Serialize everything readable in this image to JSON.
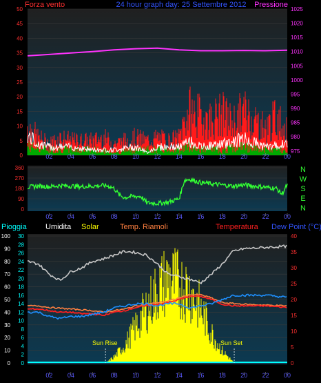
{
  "header": {
    "left_label": "Forza vento",
    "center_label": "24 hour graph day: 25 Settembre 2012",
    "right_label": "Pressione"
  },
  "colors": {
    "wind_gust": "#ff1a1a",
    "wind_avg": "#00aa00",
    "wind_line": "#ffffff",
    "pressure": "#ff33ff",
    "direction": "#33ff33",
    "humidity": "#c8c8c8",
    "temperature": "#ff2020",
    "dew_point": "#1e90ff",
    "solar": "#ffff00",
    "heat_index": "#ff8040",
    "rain": "#00ffff",
    "axis_red": "#ff3030",
    "axis_magenta": "#ff33ff",
    "axis_cyan": "#00ffff",
    "axis_blue": "#3355ff",
    "axis_white": "#ffffff",
    "axis_green": "#33ff33",
    "time_label": "#5a5aff"
  },
  "time_axis": [
    "02",
    "04",
    "06",
    "08",
    "10",
    "12",
    "14",
    "16",
    "18",
    "20",
    "22",
    "00"
  ],
  "compass": [
    "N",
    "W",
    "S",
    "E",
    "N"
  ],
  "legend2": {
    "pioggia": "Pioggia",
    "umidita": "Umidita",
    "solar": "Solar",
    "temp_riamoli": "Temp. Riamoli",
    "temperatura": "Temperatura",
    "dew_point": "Dew Point (°C)"
  },
  "sun": {
    "rise": "Sun Rise",
    "set": "Sun Set"
  },
  "chart_data": [
    {
      "type": "line",
      "id": "wind_pressure",
      "x_hours": [
        0,
        24
      ],
      "y_left_ticks": [
        0,
        5,
        10,
        15,
        20,
        25,
        30,
        35,
        40,
        45,
        50
      ],
      "y_left_range": [
        0,
        50
      ],
      "y_right_ticks": [
        975,
        980,
        985,
        990,
        995,
        1000,
        1005,
        1010,
        1015,
        1020,
        1025
      ],
      "y_right_range": [
        973.5,
        1025
      ],
      "series": [
        {
          "key": "pressure",
          "points": [
            [
              0,
              1008.5
            ],
            [
              2,
              1009
            ],
            [
              4,
              1009.5
            ],
            [
              6,
              1010
            ],
            [
              8,
              1010.6
            ],
            [
              10,
              1011
            ],
            [
              12,
              1011.2
            ],
            [
              14,
              1010.6
            ],
            [
              16,
              1010.3
            ],
            [
              18,
              1010.3
            ],
            [
              20,
              1010.4
            ],
            [
              22,
              1010.3
            ],
            [
              24,
              1010.5
            ]
          ]
        },
        {
          "key": "gust",
          "points": [
            [
              0,
              10
            ],
            [
              1,
              6
            ],
            [
              2,
              4
            ],
            [
              3,
              6
            ],
            [
              4,
              5
            ],
            [
              5,
              5
            ],
            [
              6,
              5
            ],
            [
              7,
              6
            ],
            [
              8,
              4
            ],
            [
              9,
              5
            ],
            [
              10,
              6
            ],
            [
              11,
              5
            ],
            [
              12,
              6
            ],
            [
              13,
              5
            ],
            [
              14,
              6
            ],
            [
              14.5,
              12
            ],
            [
              15,
              15
            ],
            [
              16,
              13
            ],
            [
              17,
              12
            ],
            [
              18,
              14
            ],
            [
              19,
              11
            ],
            [
              20,
              15
            ],
            [
              21,
              12
            ],
            [
              22,
              9
            ],
            [
              23,
              13
            ],
            [
              24,
              8
            ]
          ]
        },
        {
          "key": "avg",
          "points": [
            [
              0,
              3
            ],
            [
              2,
              2
            ],
            [
              4,
              2
            ],
            [
              6,
              2
            ],
            [
              8,
              1
            ],
            [
              10,
              2
            ],
            [
              12,
              2
            ],
            [
              14,
              2
            ],
            [
              15,
              3
            ],
            [
              16,
              2
            ],
            [
              18,
              2
            ],
            [
              20,
              3
            ],
            [
              22,
              2
            ],
            [
              24,
              2
            ]
          ]
        },
        {
          "key": "speed",
          "points": [
            [
              0,
              7
            ],
            [
              1,
              4
            ],
            [
              2,
              3
            ],
            [
              4,
              3
            ],
            [
              6,
              2
            ],
            [
              8,
              2
            ],
            [
              10,
              3
            ],
            [
              11,
              1
            ],
            [
              12,
              3
            ],
            [
              14,
              3
            ],
            [
              15,
              5
            ],
            [
              16,
              3
            ],
            [
              18,
              4
            ],
            [
              20,
              6
            ],
            [
              22,
              3
            ],
            [
              24,
              4
            ]
          ]
        }
      ]
    },
    {
      "type": "scatter",
      "id": "wind_direction",
      "y_ticks": [
        0,
        90,
        180,
        270,
        360
      ],
      "y_range": [
        0,
        360
      ],
      "points": [
        [
          0,
          190
        ],
        [
          1,
          200
        ],
        [
          2,
          195
        ],
        [
          3,
          205
        ],
        [
          4,
          200
        ],
        [
          5,
          195
        ],
        [
          6,
          200
        ],
        [
          7,
          205
        ],
        [
          7.5,
          200
        ],
        [
          8,
          180
        ],
        [
          8.5,
          120
        ],
        [
          9,
          100
        ],
        [
          9.5,
          110
        ],
        [
          10,
          110
        ],
        [
          10.5,
          110
        ],
        [
          11,
          55
        ],
        [
          12,
          50
        ],
        [
          13,
          60
        ],
        [
          14,
          90
        ],
        [
          14.5,
          250
        ],
        [
          15,
          260
        ],
        [
          16,
          230
        ],
        [
          17,
          220
        ],
        [
          18,
          210
        ],
        [
          19,
          200
        ],
        [
          20,
          210
        ],
        [
          21,
          200
        ],
        [
          22,
          190
        ],
        [
          23,
          180
        ],
        [
          23.5,
          130
        ],
        [
          24,
          210
        ]
      ]
    },
    {
      "type": "line",
      "id": "temp_hum_solar",
      "y_hum_ticks": [
        0,
        10,
        20,
        30,
        40,
        50,
        60,
        70,
        80,
        90,
        100
      ],
      "y_hum_range": [
        0,
        100
      ],
      "y_dew_ticks": [
        0,
        2,
        4,
        6,
        8,
        10,
        12,
        14,
        16,
        18,
        20,
        22,
        24,
        26,
        28,
        30
      ],
      "y_dew_range": [
        0,
        30
      ],
      "y_temp_ticks": [
        0,
        5,
        10,
        15,
        20,
        25,
        30,
        35,
        40
      ],
      "y_temp_range": [
        0,
        40
      ],
      "sun_rise_hour": 7.2,
      "sun_set_hour": 19.1,
      "series": [
        {
          "key": "humidity",
          "points": [
            [
              0,
              80
            ],
            [
              1,
              78
            ],
            [
              2,
              70
            ],
            [
              3,
              65
            ],
            [
              4,
              72
            ],
            [
              5,
              75
            ],
            [
              6,
              80
            ],
            [
              7,
              82
            ],
            [
              8,
              85
            ],
            [
              9,
              88
            ],
            [
              10,
              87
            ],
            [
              11,
              85
            ],
            [
              12,
              78
            ],
            [
              13,
              70
            ],
            [
              14,
              68
            ],
            [
              15,
              66
            ],
            [
              16,
              63
            ],
            [
              17,
              70
            ],
            [
              18,
              78
            ],
            [
              19,
              88
            ],
            [
              20,
              90
            ],
            [
              22,
              91
            ],
            [
              24,
              92
            ]
          ]
        },
        {
          "key": "temperature",
          "points": [
            [
              0,
              17
            ],
            [
              1,
              17
            ],
            [
              2,
              16.5
            ],
            [
              3,
              16
            ],
            [
              4,
              16
            ],
            [
              5,
              15.5
            ],
            [
              6,
              15.5
            ],
            [
              7,
              15
            ],
            [
              8,
              16
            ],
            [
              9,
              16.5
            ],
            [
              10,
              17.5
            ],
            [
              11,
              18
            ],
            [
              12,
              18.5
            ],
            [
              13,
              19
            ],
            [
              14,
              20
            ],
            [
              15,
              21
            ],
            [
              16,
              21
            ],
            [
              17,
              20
            ],
            [
              18,
              18.5
            ],
            [
              19,
              18
            ],
            [
              20,
              18
            ],
            [
              22,
              18
            ],
            [
              24,
              17.5
            ]
          ]
        },
        {
          "key": "heat_index",
          "points": [
            [
              0,
              18
            ],
            [
              1,
              18
            ],
            [
              2,
              17.5
            ],
            [
              4,
              17
            ],
            [
              6,
              16.5
            ],
            [
              7,
              16
            ],
            [
              8,
              16.5
            ],
            [
              9,
              17
            ],
            [
              10,
              18
            ],
            [
              11,
              18.5
            ],
            [
              12,
              19
            ],
            [
              13,
              19.5
            ],
            [
              14,
              20.5
            ],
            [
              15,
              21.5
            ],
            [
              16,
              21.5
            ],
            [
              17,
              20.5
            ],
            [
              18,
              19
            ],
            [
              20,
              18.5
            ],
            [
              24,
              18
            ]
          ]
        },
        {
          "key": "dew_point",
          "points": [
            [
              0,
              12
            ],
            [
              1,
              12
            ],
            [
              2,
              11
            ],
            [
              3,
              10.5
            ],
            [
              4,
              11
            ],
            [
              5,
              11
            ],
            [
              6,
              11.5
            ],
            [
              7,
              12
            ],
            [
              8,
              13
            ],
            [
              9,
              13.5
            ],
            [
              10,
              14
            ],
            [
              11,
              14
            ],
            [
              12,
              13.5
            ],
            [
              13,
              14
            ],
            [
              14,
              14
            ],
            [
              15,
              13
            ],
            [
              16,
              13.5
            ],
            [
              17,
              14
            ],
            [
              18,
              15
            ],
            [
              19,
              16
            ],
            [
              20,
              16
            ],
            [
              22,
              16
            ],
            [
              24,
              15.5
            ]
          ]
        },
        {
          "key": "solar",
          "note_unit": "relative",
          "points": [
            [
              7.2,
              0
            ],
            [
              8,
              5
            ],
            [
              9,
              15
            ],
            [
              10,
              30
            ],
            [
              11,
              45
            ],
            [
              12,
              60
            ],
            [
              13,
              70
            ],
            [
              14,
              65
            ],
            [
              15,
              60
            ],
            [
              16,
              45
            ],
            [
              17,
              25
            ],
            [
              18,
              10
            ],
            [
              19.1,
              0
            ]
          ]
        }
      ]
    }
  ]
}
